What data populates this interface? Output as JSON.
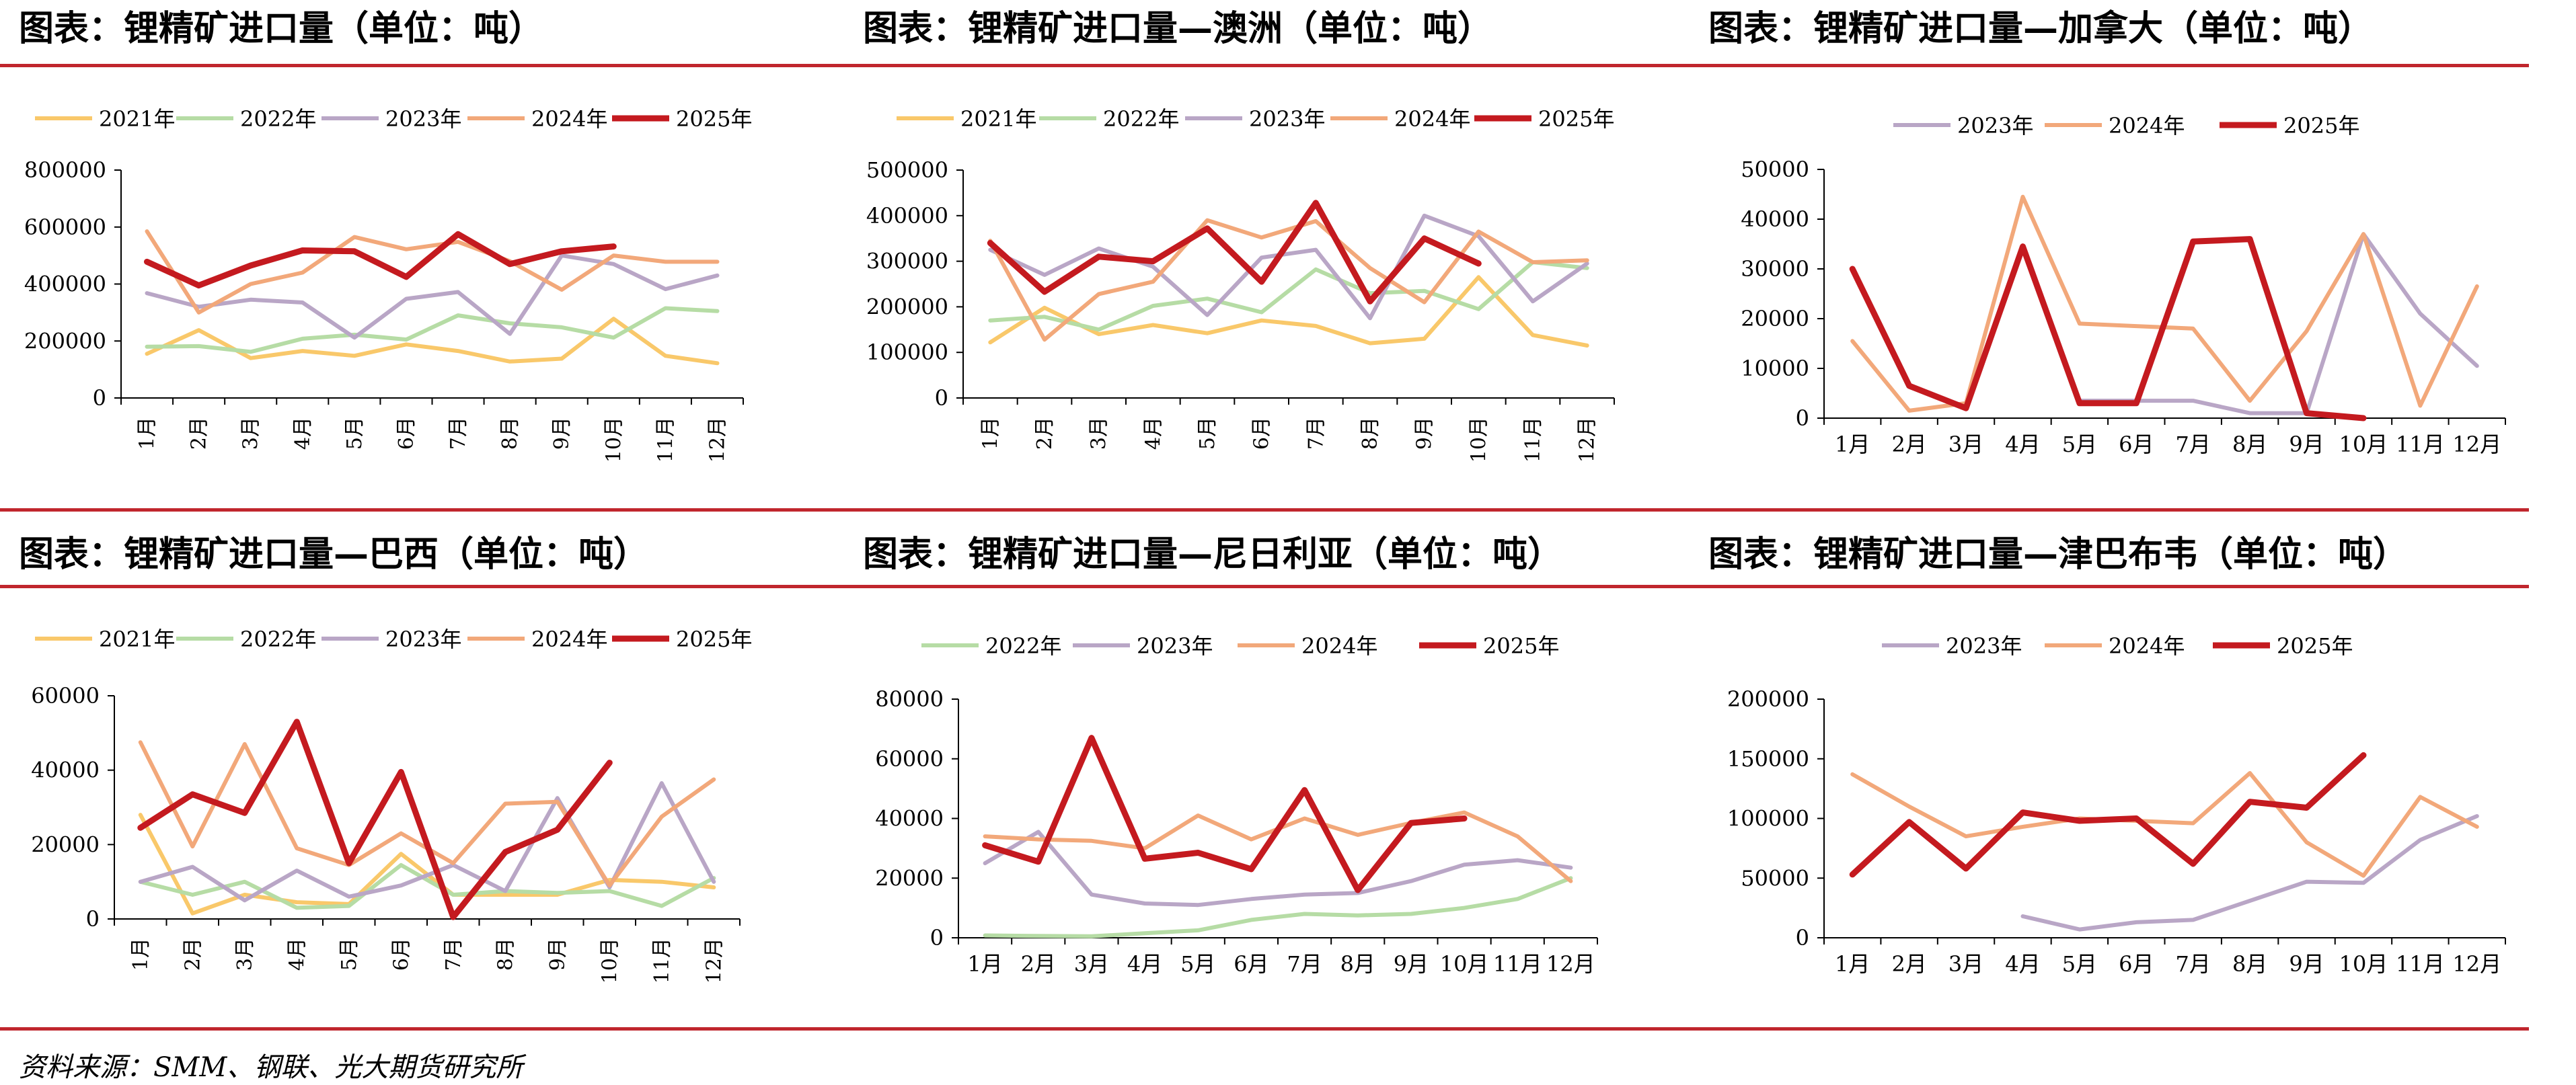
{
  "source": "资料来源：SMM、钢联、光大期货研究所",
  "colors": {
    "2021年": "#f9c86a",
    "2022年": "#b6dca5",
    "2023年": "#b9a6c6",
    "2024年": "#f2a87a",
    "2025年": "#c41a1f"
  },
  "chart_data": [
    {
      "type": "line",
      "title": "图表：锂精矿进口量（单位：吨）",
      "categories": [
        "1月",
        "2月",
        "3月",
        "4月",
        "5月",
        "6月",
        "7月",
        "8月",
        "9月",
        "10月",
        "11月",
        "12月"
      ],
      "ylim": [
        0,
        800000
      ],
      "yticks": [
        "0",
        "200000",
        "400000",
        "600000",
        "800000"
      ],
      "grid": false,
      "legend": "top",
      "series": [
        {
          "name": "2021年",
          "values": [
            155000,
            238000,
            140000,
            165000,
            148000,
            188000,
            165000,
            128000,
            138000,
            278000,
            148000,
            122000
          ]
        },
        {
          "name": "2022年",
          "values": [
            180000,
            182000,
            162000,
            208000,
            222000,
            205000,
            290000,
            262000,
            248000,
            212000,
            315000,
            305000
          ]
        },
        {
          "name": "2023年",
          "values": [
            368000,
            320000,
            345000,
            335000,
            212000,
            348000,
            372000,
            225000,
            500000,
            470000,
            382000,
            430000
          ]
        },
        {
          "name": "2024年",
          "values": [
            585000,
            300000,
            400000,
            440000,
            565000,
            522000,
            548000,
            480000,
            380000,
            500000,
            478000,
            478000
          ]
        },
        {
          "name": "2025年",
          "values": [
            478000,
            395000,
            465000,
            518000,
            515000,
            425000,
            575000,
            470000,
            515000,
            532000,
            null,
            null
          ]
        }
      ]
    },
    {
      "type": "line",
      "title": "图表：锂精矿进口量—澳洲（单位：吨）",
      "categories": [
        "1月",
        "2月",
        "3月",
        "4月",
        "5月",
        "6月",
        "7月",
        "8月",
        "9月",
        "10月",
        "11月",
        "12月"
      ],
      "ylim": [
        0,
        500000
      ],
      "yticks": [
        "0",
        "100000",
        "200000",
        "300000",
        "400000",
        "500000"
      ],
      "grid": false,
      "legend": "top",
      "series": [
        {
          "name": "2021年",
          "values": [
            122000,
            198000,
            140000,
            160000,
            142000,
            170000,
            158000,
            120000,
            130000,
            265000,
            138000,
            115000
          ]
        },
        {
          "name": "2022年",
          "values": [
            170000,
            178000,
            150000,
            202000,
            218000,
            188000,
            282000,
            230000,
            235000,
            195000,
            298000,
            285000
          ]
        },
        {
          "name": "2023年",
          "values": [
            325000,
            270000,
            328000,
            288000,
            182000,
            308000,
            325000,
            175000,
            400000,
            355000,
            212000,
            295000
          ]
        },
        {
          "name": "2024年",
          "values": [
            345000,
            128000,
            228000,
            255000,
            390000,
            352000,
            388000,
            285000,
            210000,
            365000,
            298000,
            302000
          ]
        },
        {
          "name": "2025年",
          "values": [
            340000,
            233000,
            310000,
            300000,
            372000,
            255000,
            428000,
            212000,
            350000,
            295000,
            null,
            null
          ]
        }
      ]
    },
    {
      "type": "line",
      "title": "图表：锂精矿进口量—加拿大（单位：吨）",
      "categories": [
        "1月",
        "2月",
        "3月",
        "4月",
        "5月",
        "6月",
        "7月",
        "8月",
        "9月",
        "10月",
        "11月",
        "12月"
      ],
      "ylim": [
        0,
        50000
      ],
      "yticks": [
        "0",
        "10000",
        "20000",
        "30000",
        "40000",
        "50000"
      ],
      "grid": false,
      "legend": "top",
      "series": [
        {
          "name": "2023年",
          "values": [
            null,
            null,
            null,
            null,
            3500,
            3500,
            3500,
            1000,
            1000,
            37000,
            21000,
            10500
          ]
        },
        {
          "name": "2024年",
          "values": [
            15500,
            1500,
            3000,
            44500,
            19000,
            18500,
            18000,
            3500,
            17500,
            37000,
            2500,
            26500
          ]
        },
        {
          "name": "2025年",
          "values": [
            30000,
            6500,
            2000,
            34500,
            3000,
            3000,
            35500,
            36000,
            1000,
            0,
            null,
            null
          ]
        }
      ]
    },
    {
      "type": "line",
      "title": "图表：锂精矿进口量—巴西（单位：吨）",
      "categories": [
        "1月",
        "2月",
        "3月",
        "4月",
        "5月",
        "6月",
        "7月",
        "8月",
        "9月",
        "10月",
        "11月",
        "12月"
      ],
      "ylim": [
        0,
        60000
      ],
      "yticks": [
        "0",
        "20000",
        "40000",
        "60000"
      ],
      "grid": false,
      "legend": "top",
      "series": [
        {
          "name": "2021年",
          "values": [
            28000,
            1500,
            6500,
            4500,
            4000,
            17500,
            6500,
            6500,
            6500,
            10500,
            10000,
            8500
          ]
        },
        {
          "name": "2022年",
          "values": [
            10000,
            6500,
            10000,
            3000,
            3500,
            14500,
            6500,
            7500,
            7000,
            7500,
            3500,
            11000
          ]
        },
        {
          "name": "2023年",
          "values": [
            10000,
            14000,
            5000,
            13000,
            6000,
            9000,
            14500,
            7500,
            32500,
            8500,
            36500,
            10000
          ]
        },
        {
          "name": "2024年",
          "values": [
            47500,
            19500,
            47000,
            19000,
            14500,
            23000,
            15000,
            31000,
            31500,
            9000,
            27500,
            37500
          ]
        },
        {
          "name": "2025年",
          "values": [
            24500,
            33500,
            28500,
            53000,
            15000,
            39500,
            500,
            18000,
            24000,
            42000,
            null,
            null
          ]
        }
      ]
    },
    {
      "type": "line",
      "title": "图表：锂精矿进口量—尼日利亚（单位：吨）",
      "categories": [
        "1月",
        "2月",
        "3月",
        "4月",
        "5月",
        "6月",
        "7月",
        "8月",
        "9月",
        "10月",
        "11月",
        "12月"
      ],
      "ylim": [
        0,
        80000
      ],
      "yticks": [
        "0",
        "20000",
        "40000",
        "60000",
        "80000"
      ],
      "grid": false,
      "legend": "top",
      "series": [
        {
          "name": "2022年",
          "values": [
            800,
            600,
            500,
            1500,
            2500,
            6000,
            8000,
            7500,
            8000,
            10000,
            13000,
            20000
          ]
        },
        {
          "name": "2023年",
          "values": [
            25000,
            35500,
            14500,
            11500,
            11000,
            13000,
            14500,
            15000,
            19000,
            24500,
            26000,
            23500
          ]
        },
        {
          "name": "2024年",
          "values": [
            34000,
            33000,
            32500,
            30000,
            41000,
            33000,
            40000,
            34500,
            38500,
            42000,
            34000,
            19000
          ]
        },
        {
          "name": "2025年",
          "values": [
            31000,
            25500,
            67000,
            26500,
            28500,
            23000,
            49500,
            16000,
            38500,
            40000,
            null,
            null
          ]
        }
      ]
    },
    {
      "type": "line",
      "title": "图表：锂精矿进口量—津巴布韦（单位：吨）",
      "categories": [
        "1月",
        "2月",
        "3月",
        "4月",
        "5月",
        "6月",
        "7月",
        "8月",
        "9月",
        "10月",
        "11月",
        "12月"
      ],
      "ylim": [
        0,
        200000
      ],
      "yticks": [
        "0",
        "50000",
        "100000",
        "150000",
        "200000"
      ],
      "grid": false,
      "legend": "top",
      "series": [
        {
          "name": "2023年",
          "values": [
            null,
            null,
            null,
            18000,
            7000,
            13000,
            15000,
            31000,
            47000,
            46000,
            82000,
            102000
          ]
        },
        {
          "name": "2024年",
          "values": [
            137000,
            110000,
            85000,
            93000,
            100000,
            98000,
            96000,
            138000,
            80000,
            52000,
            118000,
            93000
          ]
        },
        {
          "name": "2025年",
          "values": [
            53000,
            97000,
            58000,
            105000,
            98000,
            100000,
            62000,
            114000,
            109000,
            153000,
            null,
            null
          ]
        }
      ]
    }
  ]
}
